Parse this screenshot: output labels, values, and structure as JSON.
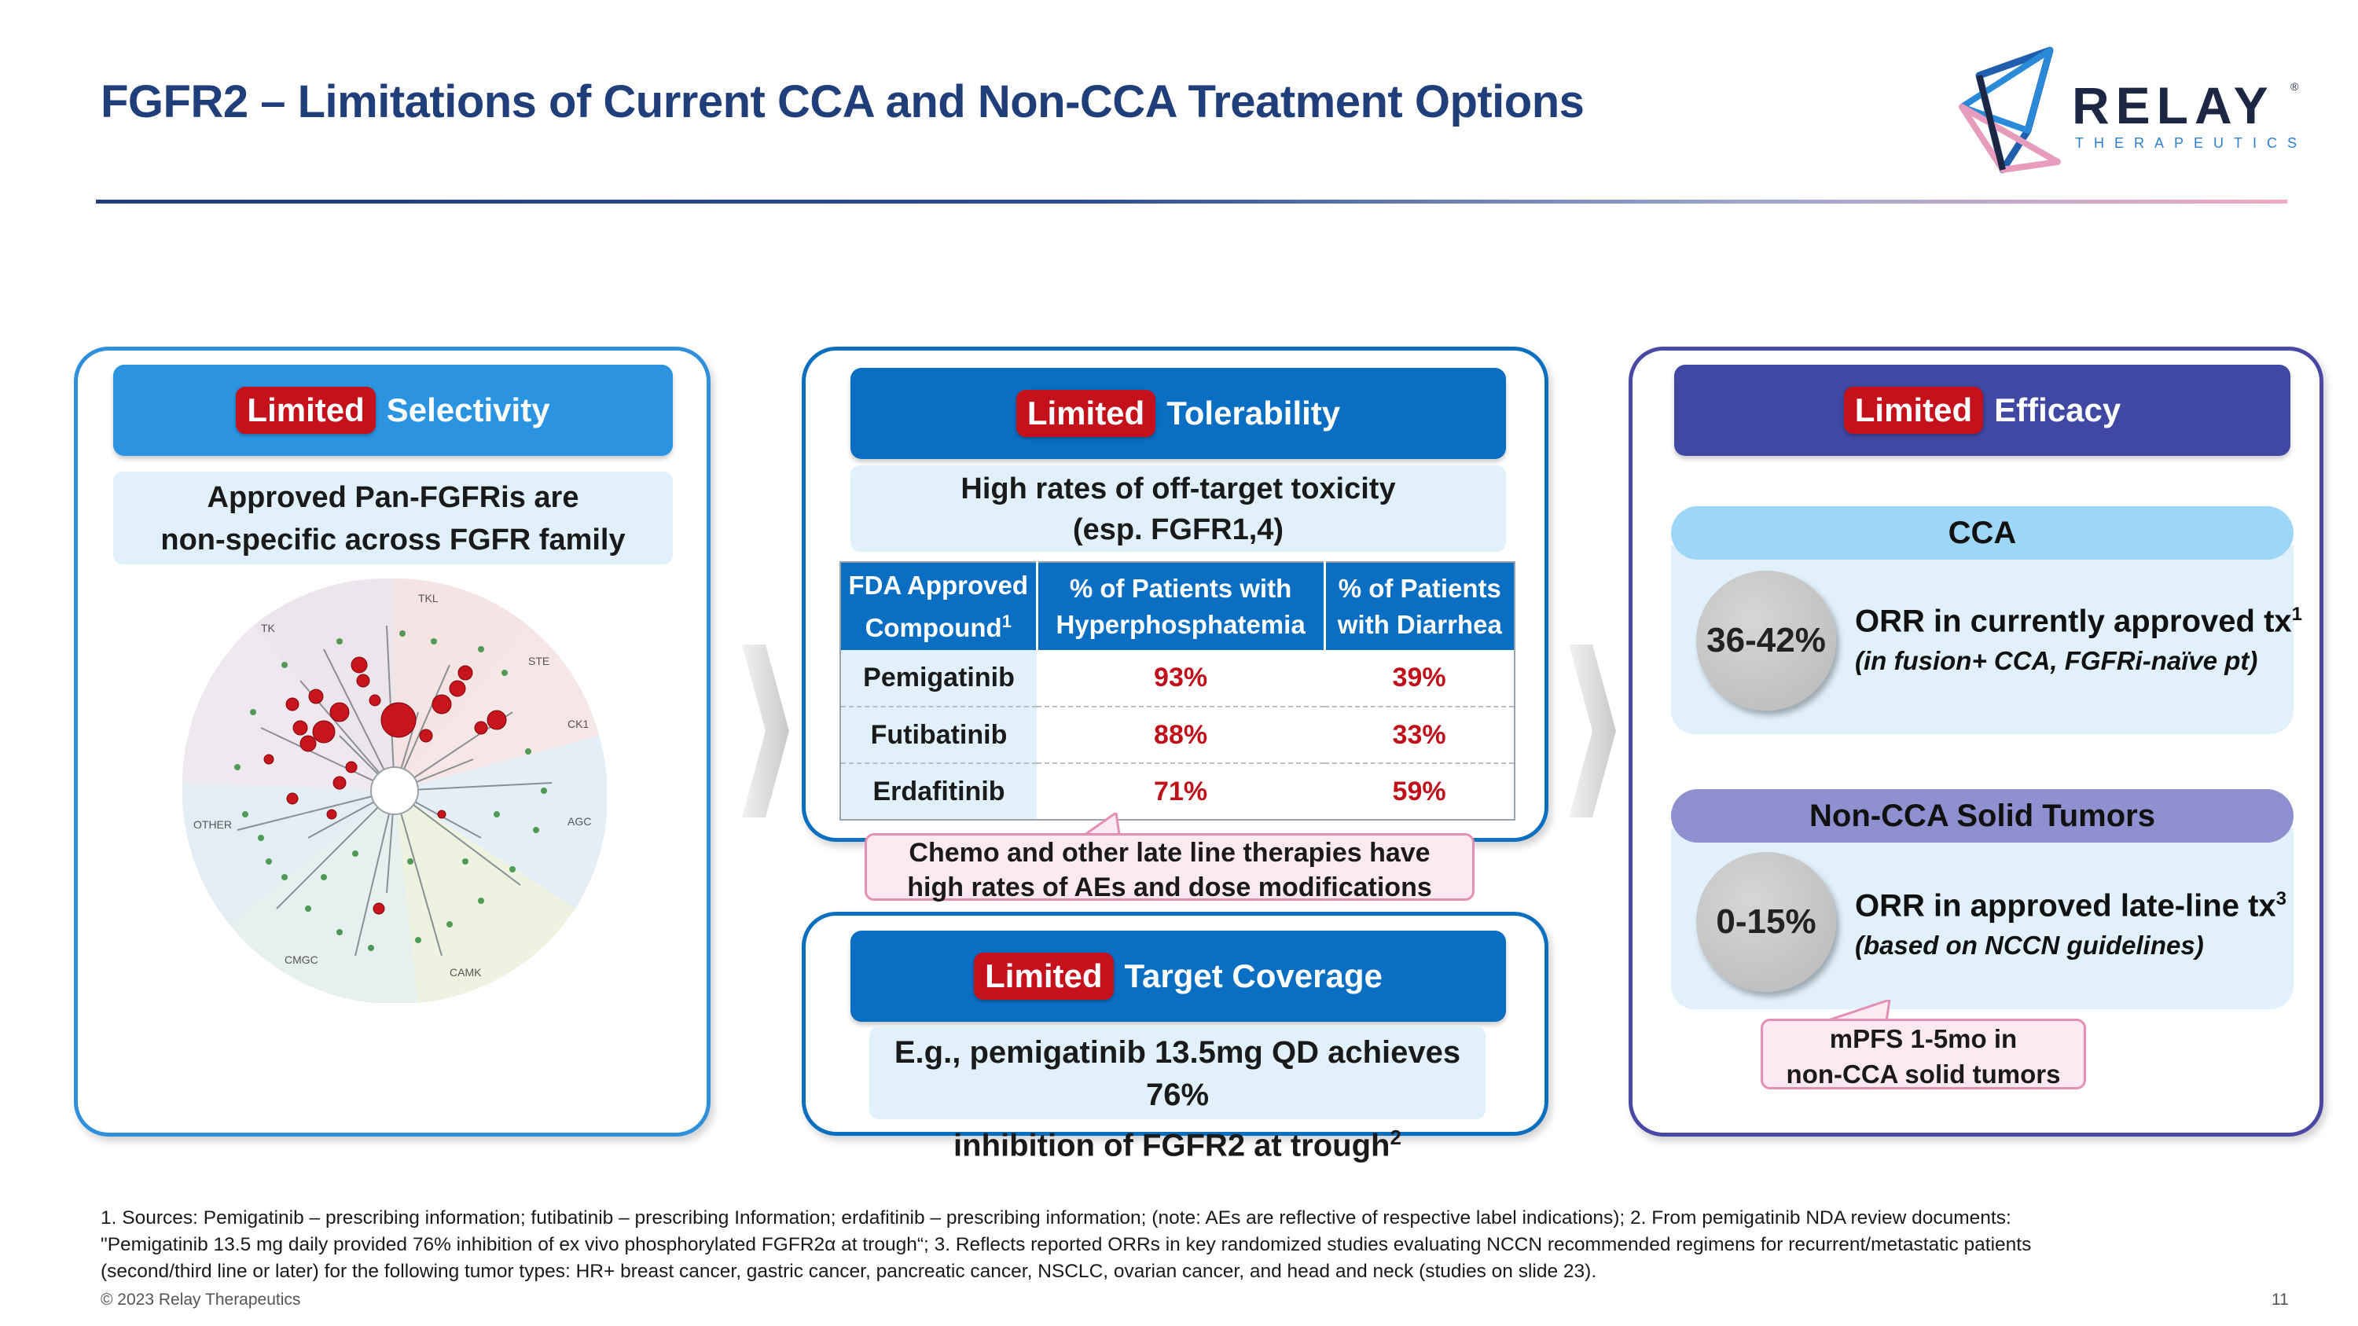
{
  "title": "FGFR2 – Limitations of Current CCA and Non-CCA Treatment Options",
  "logo": {
    "word": "RELAY",
    "sub": "THERAPEUTICS",
    "reg": "®"
  },
  "selectivity": {
    "tag": "Limited",
    "title": "Selectivity",
    "line1": "Approved Pan-FGFRis are",
    "line2": "non-specific across FGFR family",
    "kinome_labels": {
      "tkl": "TKL",
      "tk": "TK",
      "ste": "STE",
      "ck1": "CK1",
      "other": "OTHER",
      "agc": "AGC",
      "cmgc": "CMGC",
      "camk": "CAMK"
    }
  },
  "tolerability": {
    "tag": "Limited",
    "title": "Tolerability",
    "line1": "High rates of off-target toxicity",
    "line2": "(esp. FGFR1,4)",
    "table": {
      "headers": [
        {
          "line1": "FDA Approved",
          "line2": "Compound",
          "sup": "1"
        },
        {
          "line1": "% of Patients with",
          "line2": "Hyperphosphatemia",
          "sup": ""
        },
        {
          "line1": "% of Patients",
          "line2": "with Diarrhea",
          "sup": ""
        }
      ],
      "rows": [
        {
          "drug": "Pemigatinib",
          "hyper": "93%",
          "diarrhea": "39%"
        },
        {
          "drug": "Futibatinib",
          "hyper": "88%",
          "diarrhea": "33%"
        },
        {
          "drug": "Erdafitinib",
          "hyper": "71%",
          "diarrhea": "59%"
        }
      ]
    },
    "callout_line1": "Chemo and other late line therapies have",
    "callout_line2": "high rates of AEs and dose modifications"
  },
  "coverage": {
    "tag": "Limited",
    "title": "Target Coverage",
    "line1": "E.g., pemigatinib 13.5mg QD achieves 76%",
    "line2": "inhibition of FGFR2 at trough",
    "sup": "2"
  },
  "efficacy": {
    "tag": "Limited",
    "title": "Efficacy",
    "cca": {
      "label": "CCA",
      "value": "36-42%",
      "text": "ORR in currently approved tx",
      "sup": "1",
      "sub": "(in fusion+ CCA, FGFRi-naïve pt)"
    },
    "non_cca": {
      "label": "Non-CCA Solid Tumors",
      "value": "0-15%",
      "text": "ORR in approved late-line tx",
      "sup": "3",
      "sub": "(based on NCCN guidelines)"
    },
    "callout_line1": "mPFS 1-5mo in",
    "callout_line2": "non-CCA solid tumors"
  },
  "footnote": {
    "line1": "1. Sources: Pemigatinib – prescribing information; futibatinib – prescribing Information; erdafitinib – prescribing information; (note: AEs are reflective of respective label indications);  2. From pemigatinib NDA review documents:",
    "line2": "\"Pemigatinib 13.5 mg daily provided 76% inhibition of ex vivo phosphorylated FGFR2α at trough“;  3. Reflects reported ORRs in key randomized studies evaluating NCCN recommended regimens for recurrent/metastatic patients",
    "line3": "(second/third line or later) for the following tumor types: HR+ breast cancer, gastric cancer, pancreatic cancer, NSCLC, ovarian cancer, and head and neck (studies on slide 23)."
  },
  "copyright": "© 2023 Relay Therapeutics",
  "page_number": "11",
  "colors": {
    "navy": "#1f3e7a",
    "red": "#c5111b",
    "blue": "#0a6fc2",
    "purple": "#3f48a3",
    "pink": "#fde9f1"
  }
}
